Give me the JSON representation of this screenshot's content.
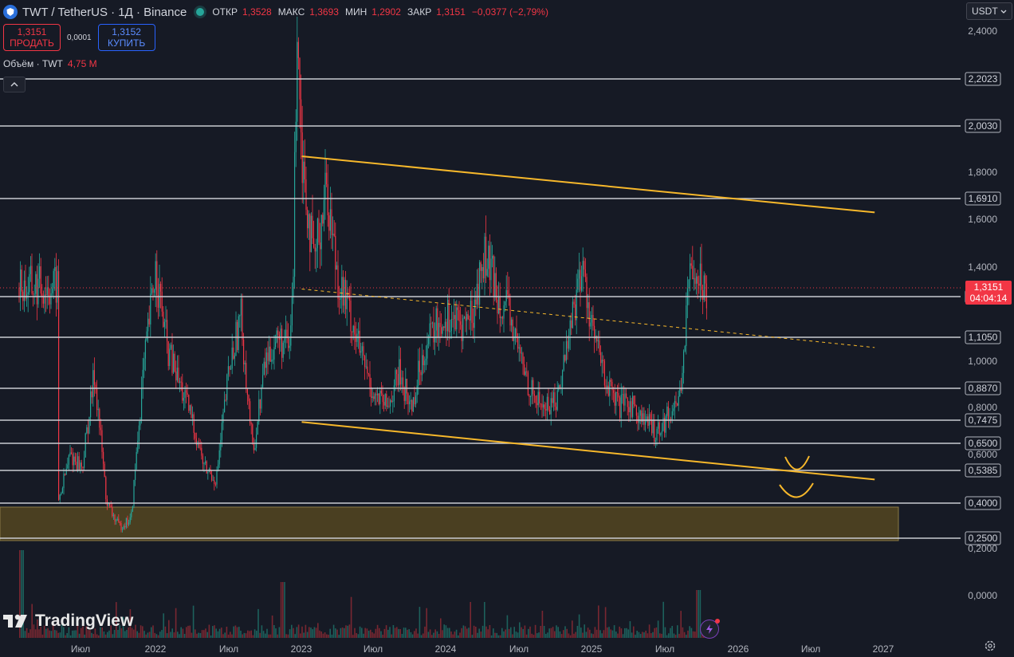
{
  "header": {
    "symbol": "TWT / TetherUS · 1Д · Binance",
    "open_label": "ОТКР",
    "open_value": "1,3528",
    "high_label": "МАКС",
    "high_value": "1,3693",
    "low_label": "МИН",
    "low_value": "1,2902",
    "close_label": "ЗАКР",
    "close_value": "1,3151",
    "change": "−0,0377 (−2,79%)"
  },
  "trade": {
    "sell_price": "1,3151",
    "sell_label": "ПРОДАТЬ",
    "spread": "0,0001",
    "buy_price": "1,3152",
    "buy_label": "КУПИТЬ"
  },
  "volume": {
    "label": "Объём · TWT",
    "value": "4,75 M"
  },
  "currency_selector": "USDT",
  "brand": "TradingView",
  "colors": {
    "up": "#26a69a",
    "down": "#f23645",
    "level": "#c9cbd1",
    "trend": "#f7b82b",
    "zone": "#4a3f21",
    "price_tag": "#f23645"
  },
  "icons": [
    "tradingview-logo-icon",
    "chevron-up-icon",
    "chevron-down-icon",
    "gear-icon",
    "flash-icon"
  ],
  "chart_data": {
    "type": "candlestick",
    "instrument": "TWT / TetherUS",
    "interval": "1Д",
    "exchange": "Binance",
    "y_ticks": [
      "2,4000",
      "1,8000",
      "1,6000",
      "1,4000",
      "1,0000",
      "0,8000",
      "0,6000",
      "0,2000",
      "0,0000"
    ],
    "x_ticks": [
      "Июл",
      "2022",
      "Июл",
      "2023",
      "Июл",
      "2024",
      "Июл",
      "2025",
      "Июл",
      "2026",
      "Июл",
      "2027"
    ],
    "horizontal_levels": [
      "2,2023",
      "2,0030",
      "1,6910",
      "1,2768",
      "1,1050",
      "0,8870",
      "0,7475",
      "0,6500",
      "0,5385",
      "0,4000",
      "0,2500"
    ],
    "current_price": {
      "value": "1,3151",
      "countdown": "04:04:14"
    },
    "price_path": [
      [
        "2021-05",
        0.4
      ],
      [
        "2021-06",
        0.6
      ],
      [
        "2021-07",
        0.55
      ],
      [
        "2021-08",
        0.95
      ],
      [
        "2021-09",
        0.4
      ],
      [
        "2021-10",
        0.3
      ],
      [
        "2021-11",
        0.33
      ],
      [
        "2021-12",
        0.95
      ],
      [
        "2022-01",
        1.4
      ],
      [
        "2022-02",
        1.05
      ],
      [
        "2022-03",
        0.9
      ],
      [
        "2022-04",
        0.75
      ],
      [
        "2022-05",
        0.55
      ],
      [
        "2022-06",
        0.5
      ],
      [
        "2022-07",
        0.95
      ],
      [
        "2022-08",
        1.2
      ],
      [
        "2022-09",
        0.6
      ],
      [
        "2022-10",
        1.0
      ],
      [
        "2022-11",
        1.1
      ],
      [
        "2022-12",
        1.05
      ],
      [
        "2022-12-10",
        1.35
      ],
      [
        "2022-12-20",
        2.5
      ],
      [
        "2023-01",
        1.9
      ],
      [
        "2023-02",
        1.4
      ],
      [
        "2023-03",
        1.75
      ],
      [
        "2023-04",
        1.35
      ],
      [
        "2023-05",
        1.2
      ],
      [
        "2023-06",
        1.0
      ],
      [
        "2023-07",
        0.85
      ],
      [
        "2023-08",
        0.8
      ],
      [
        "2023-09",
        0.95
      ],
      [
        "2023-10",
        0.8
      ],
      [
        "2023-11",
        1.05
      ],
      [
        "2023-12",
        1.15
      ],
      [
        "2024-01",
        1.2
      ],
      [
        "2024-02",
        1.15
      ],
      [
        "2024-03",
        1.2
      ],
      [
        "2024-04",
        1.45
      ],
      [
        "2024-05",
        1.3
      ],
      [
        "2024-06",
        1.2
      ],
      [
        "2024-07",
        1.0
      ],
      [
        "2024-08",
        0.85
      ],
      [
        "2024-09",
        0.8
      ],
      [
        "2024-10",
        0.85
      ],
      [
        "2024-11",
        1.15
      ],
      [
        "2024-12",
        1.4
      ],
      [
        "2025-01",
        1.1
      ],
      [
        "2025-02",
        0.9
      ],
      [
        "2025-03",
        0.8
      ],
      [
        "2025-04",
        0.82
      ],
      [
        "2025-05",
        0.75
      ],
      [
        "2025-06",
        0.7
      ],
      [
        "2025-07",
        0.76
      ],
      [
        "2025-08",
        0.85
      ],
      [
        "2025-09",
        1.45
      ],
      [
        "2025-10",
        1.3151
      ]
    ],
    "upper_trendline": [
      [
        "2023-01",
        1.87
      ],
      [
        "2026-12",
        1.63
      ]
    ],
    "lower_trendline": [
      [
        "2023-01",
        0.74
      ],
      [
        "2026-12",
        0.5
      ]
    ],
    "midline_dashed": [
      [
        "2023-01",
        1.31
      ],
      [
        "2026-12",
        1.06
      ]
    ],
    "support_zone": [
      "0,2500",
      "0,4000"
    ]
  }
}
